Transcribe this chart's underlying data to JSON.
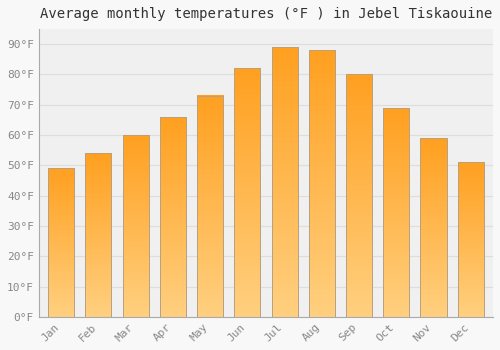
{
  "title": "Average monthly temperatures (°F ) in Jebel Tiskaouine",
  "months": [
    "Jan",
    "Feb",
    "Mar",
    "Apr",
    "May",
    "Jun",
    "Jul",
    "Aug",
    "Sep",
    "Oct",
    "Nov",
    "Dec"
  ],
  "values": [
    49,
    54,
    60,
    66,
    73,
    82,
    89,
    88,
    80,
    69,
    59,
    51
  ],
  "bar_color_top": "#FFA020",
  "bar_color_bottom": "#FFD080",
  "bar_edge_color": "#B8A080",
  "background_color": "#F8F8F8",
  "plot_bg_color": "#F0F0F0",
  "grid_color": "#DDDDDD",
  "ylim": [
    0,
    95
  ],
  "yticks": [
    0,
    10,
    20,
    30,
    40,
    50,
    60,
    70,
    80,
    90
  ],
  "ytick_labels": [
    "0°F",
    "10°F",
    "20°F",
    "30°F",
    "40°F",
    "50°F",
    "60°F",
    "70°F",
    "80°F",
    "90°F"
  ],
  "tick_fontsize": 8,
  "title_fontsize": 10,
  "xlabel_rotation": 45,
  "bar_width": 0.7
}
